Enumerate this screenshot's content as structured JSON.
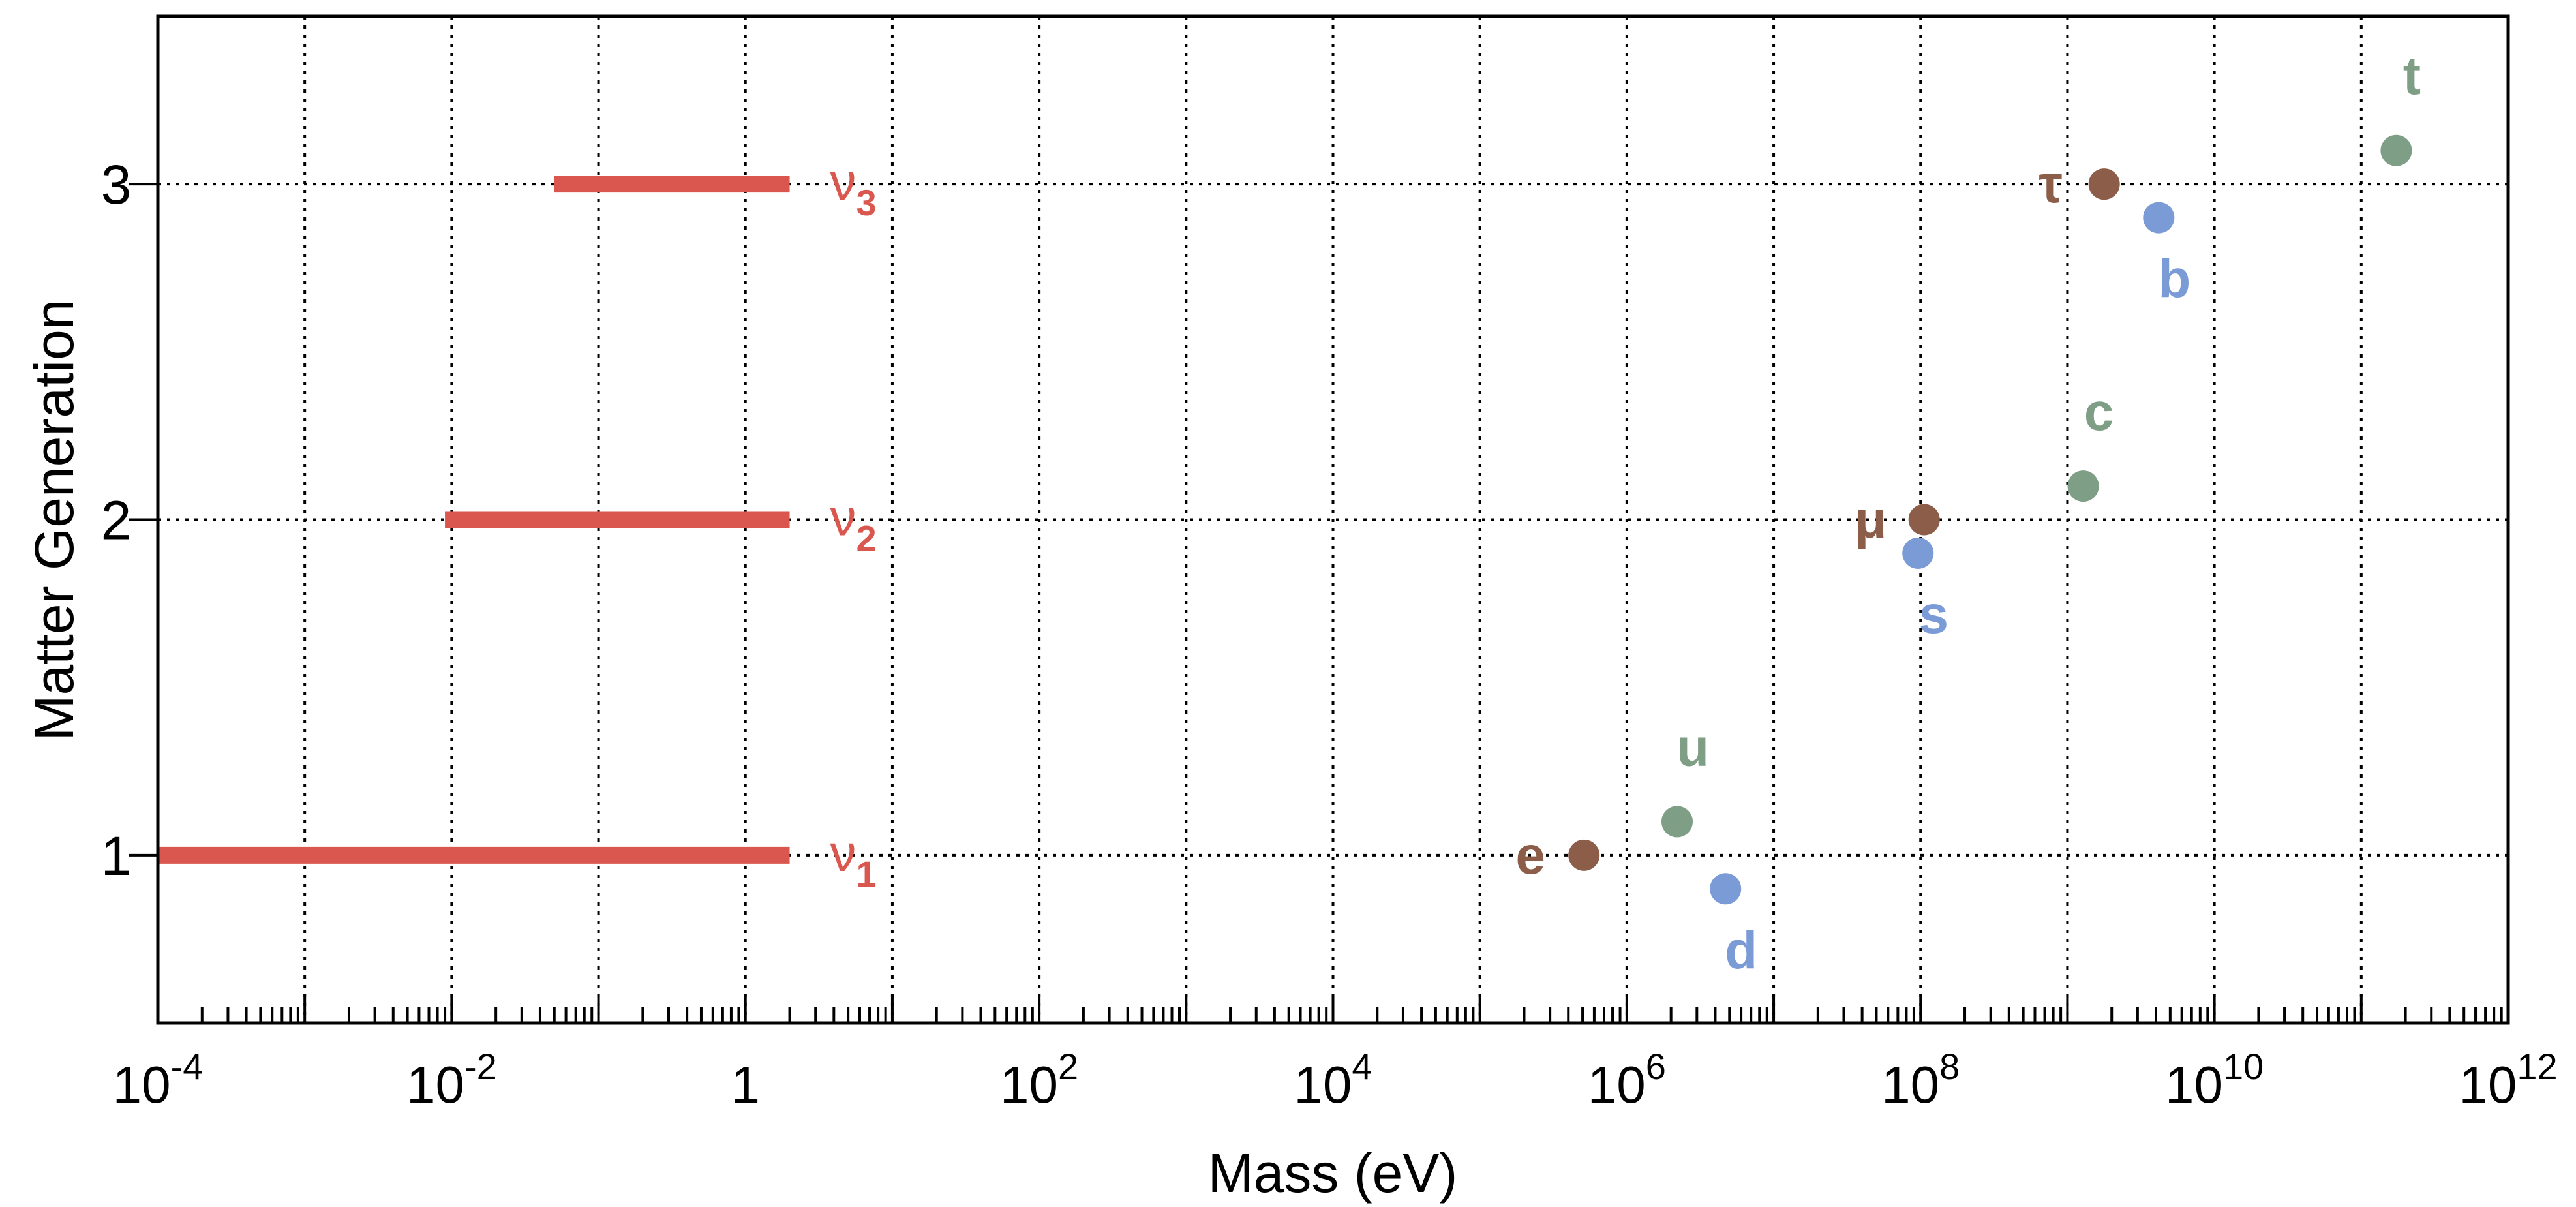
{
  "chart_data": {
    "type": "scatter",
    "title": "",
    "xlabel": "Mass (eV)",
    "ylabel": "Matter Generation",
    "x_scale": "log",
    "xlim": [
      0.0001,
      1000000000000
    ],
    "ylim": [
      0.5,
      3.5
    ],
    "grid": true,
    "x_ticks": [
      {
        "value": 0.0001,
        "base": "10",
        "exp": "-4"
      },
      {
        "value": 0.01,
        "base": "10",
        "exp": "-2"
      },
      {
        "value": 1,
        "base": "1",
        "exp": ""
      },
      {
        "value": 100,
        "base": "10",
        "exp": "2"
      },
      {
        "value": 10000,
        "base": "10",
        "exp": "4"
      },
      {
        "value": 1000000,
        "base": "10",
        "exp": "6"
      },
      {
        "value": 100000000,
        "base": "10",
        "exp": "8"
      },
      {
        "value": 10000000000,
        "base": "10",
        "exp": "10"
      },
      {
        "value": 1000000000000,
        "base": "10",
        "exp": "12"
      }
    ],
    "y_ticks": [
      {
        "value": 1,
        "label": "1"
      },
      {
        "value": 2,
        "label": "2"
      },
      {
        "value": 3,
        "label": "3"
      }
    ],
    "neutrinos": [
      {
        "label": "ν",
        "sub": "1",
        "generation": 1,
        "mass_range": [
          0.0001,
          2
        ]
      },
      {
        "label": "ν",
        "sub": "2",
        "generation": 2,
        "mass_range": [
          0.009,
          2
        ]
      },
      {
        "label": "ν",
        "sub": "3",
        "generation": 3,
        "mass_range": [
          0.05,
          2
        ]
      }
    ],
    "particles": [
      {
        "label": "e",
        "mass": 511000,
        "generation": 1.0,
        "kind": "lepton",
        "label_pos": "left"
      },
      {
        "label": "u",
        "mass": 2200000,
        "generation": 1.1,
        "kind": "up",
        "label_pos": "above"
      },
      {
        "label": "d",
        "mass": 4700000,
        "generation": 0.9,
        "kind": "down",
        "label_pos": "below"
      },
      {
        "label": "μ",
        "mass": 105700000,
        "generation": 2.0,
        "kind": "lepton",
        "label_pos": "left"
      },
      {
        "label": "s",
        "mass": 96000000,
        "generation": 1.9,
        "kind": "down",
        "label_pos": "below"
      },
      {
        "label": "c",
        "mass": 1280000000,
        "generation": 2.1,
        "kind": "up",
        "label_pos": "above"
      },
      {
        "label": "τ",
        "mass": 1777000000,
        "generation": 3.0,
        "kind": "lepton",
        "label_pos": "left"
      },
      {
        "label": "b",
        "mass": 4180000000,
        "generation": 2.9,
        "kind": "down",
        "label_pos": "below"
      },
      {
        "label": "t",
        "mass": 173000000000,
        "generation": 3.1,
        "kind": "up",
        "label_pos": "above"
      }
    ],
    "colors": {
      "neutrino": "#d9574f",
      "lepton": "#8c5e4a",
      "up": "#7f9e86",
      "down": "#7b9bd6",
      "grid": "#000000",
      "axis": "#000000"
    }
  }
}
